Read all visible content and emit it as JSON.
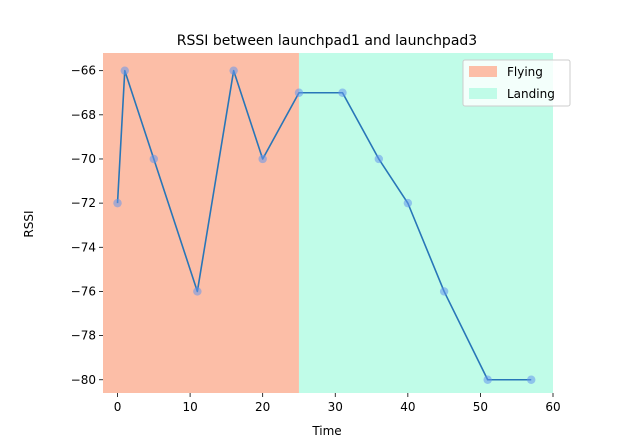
{
  "chart_data": {
    "type": "line",
    "title": "RSSI between launchpad1 and launchpad3",
    "xlabel": "Time",
    "ylabel": "RSSI",
    "xlim": [
      -2,
      60
    ],
    "ylim": [
      -80.6,
      -65.2
    ],
    "xticks": [
      "0",
      "10",
      "20",
      "30",
      "40",
      "50",
      "60"
    ],
    "yticks": [
      "−66",
      "−68",
      "−70",
      "−72",
      "−74",
      "−76",
      "−78",
      "−80"
    ],
    "grid": false,
    "legend_position": "top-right",
    "series": [
      {
        "x": [
          0,
          1,
          5,
          11,
          16,
          20,
          25,
          31,
          36,
          40,
          45,
          51,
          57
        ],
        "y": [
          -72,
          -66,
          -70,
          -76,
          -66,
          -70,
          -67,
          -67,
          -70,
          -72,
          -76,
          -80,
          -80
        ],
        "color": "#2876b8"
      }
    ],
    "regions": [
      {
        "name": "Flying",
        "x_start": -2,
        "x_end": 25,
        "color": "#fcbea7"
      },
      {
        "name": "Landing",
        "x_start": 25,
        "x_end": 60,
        "color": "#c0fce8"
      }
    ],
    "marker_color": "#6495ed"
  }
}
